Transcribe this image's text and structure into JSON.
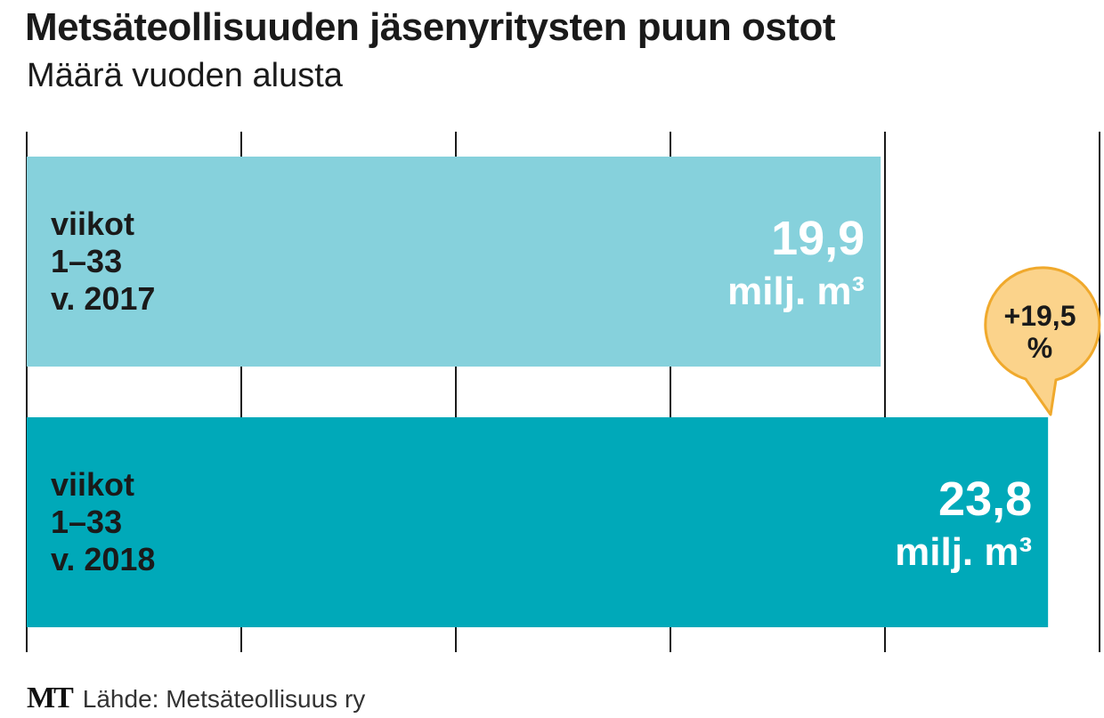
{
  "chart_data": {
    "type": "bar",
    "orientation": "horizontal",
    "title": "Metsäteollisuuden jäsenyritysten puun ostot",
    "subtitle": "Määrä vuoden alusta",
    "categories": [
      [
        "viikot",
        "1–33",
        "v. 2017"
      ],
      [
        "viikot",
        "1–33",
        "v. 2018"
      ]
    ],
    "values": [
      19.9,
      23.8
    ],
    "value_labels": [
      "19,9",
      "23,8"
    ],
    "unit_label": "milj. m³",
    "bar_colors": [
      "#86d1dc",
      "#00a9b9"
    ],
    "gridlines": [
      0,
      5,
      10,
      15,
      20,
      25
    ],
    "xlim": [
      0,
      25
    ],
    "grid": true,
    "annotation": {
      "lines": [
        "+19,5",
        "%"
      ],
      "fill": "#fbd38b",
      "stroke": "#f0a92c"
    }
  },
  "footer": {
    "logo": "MT",
    "source": "Lähde: Metsäteollisuus ry"
  }
}
